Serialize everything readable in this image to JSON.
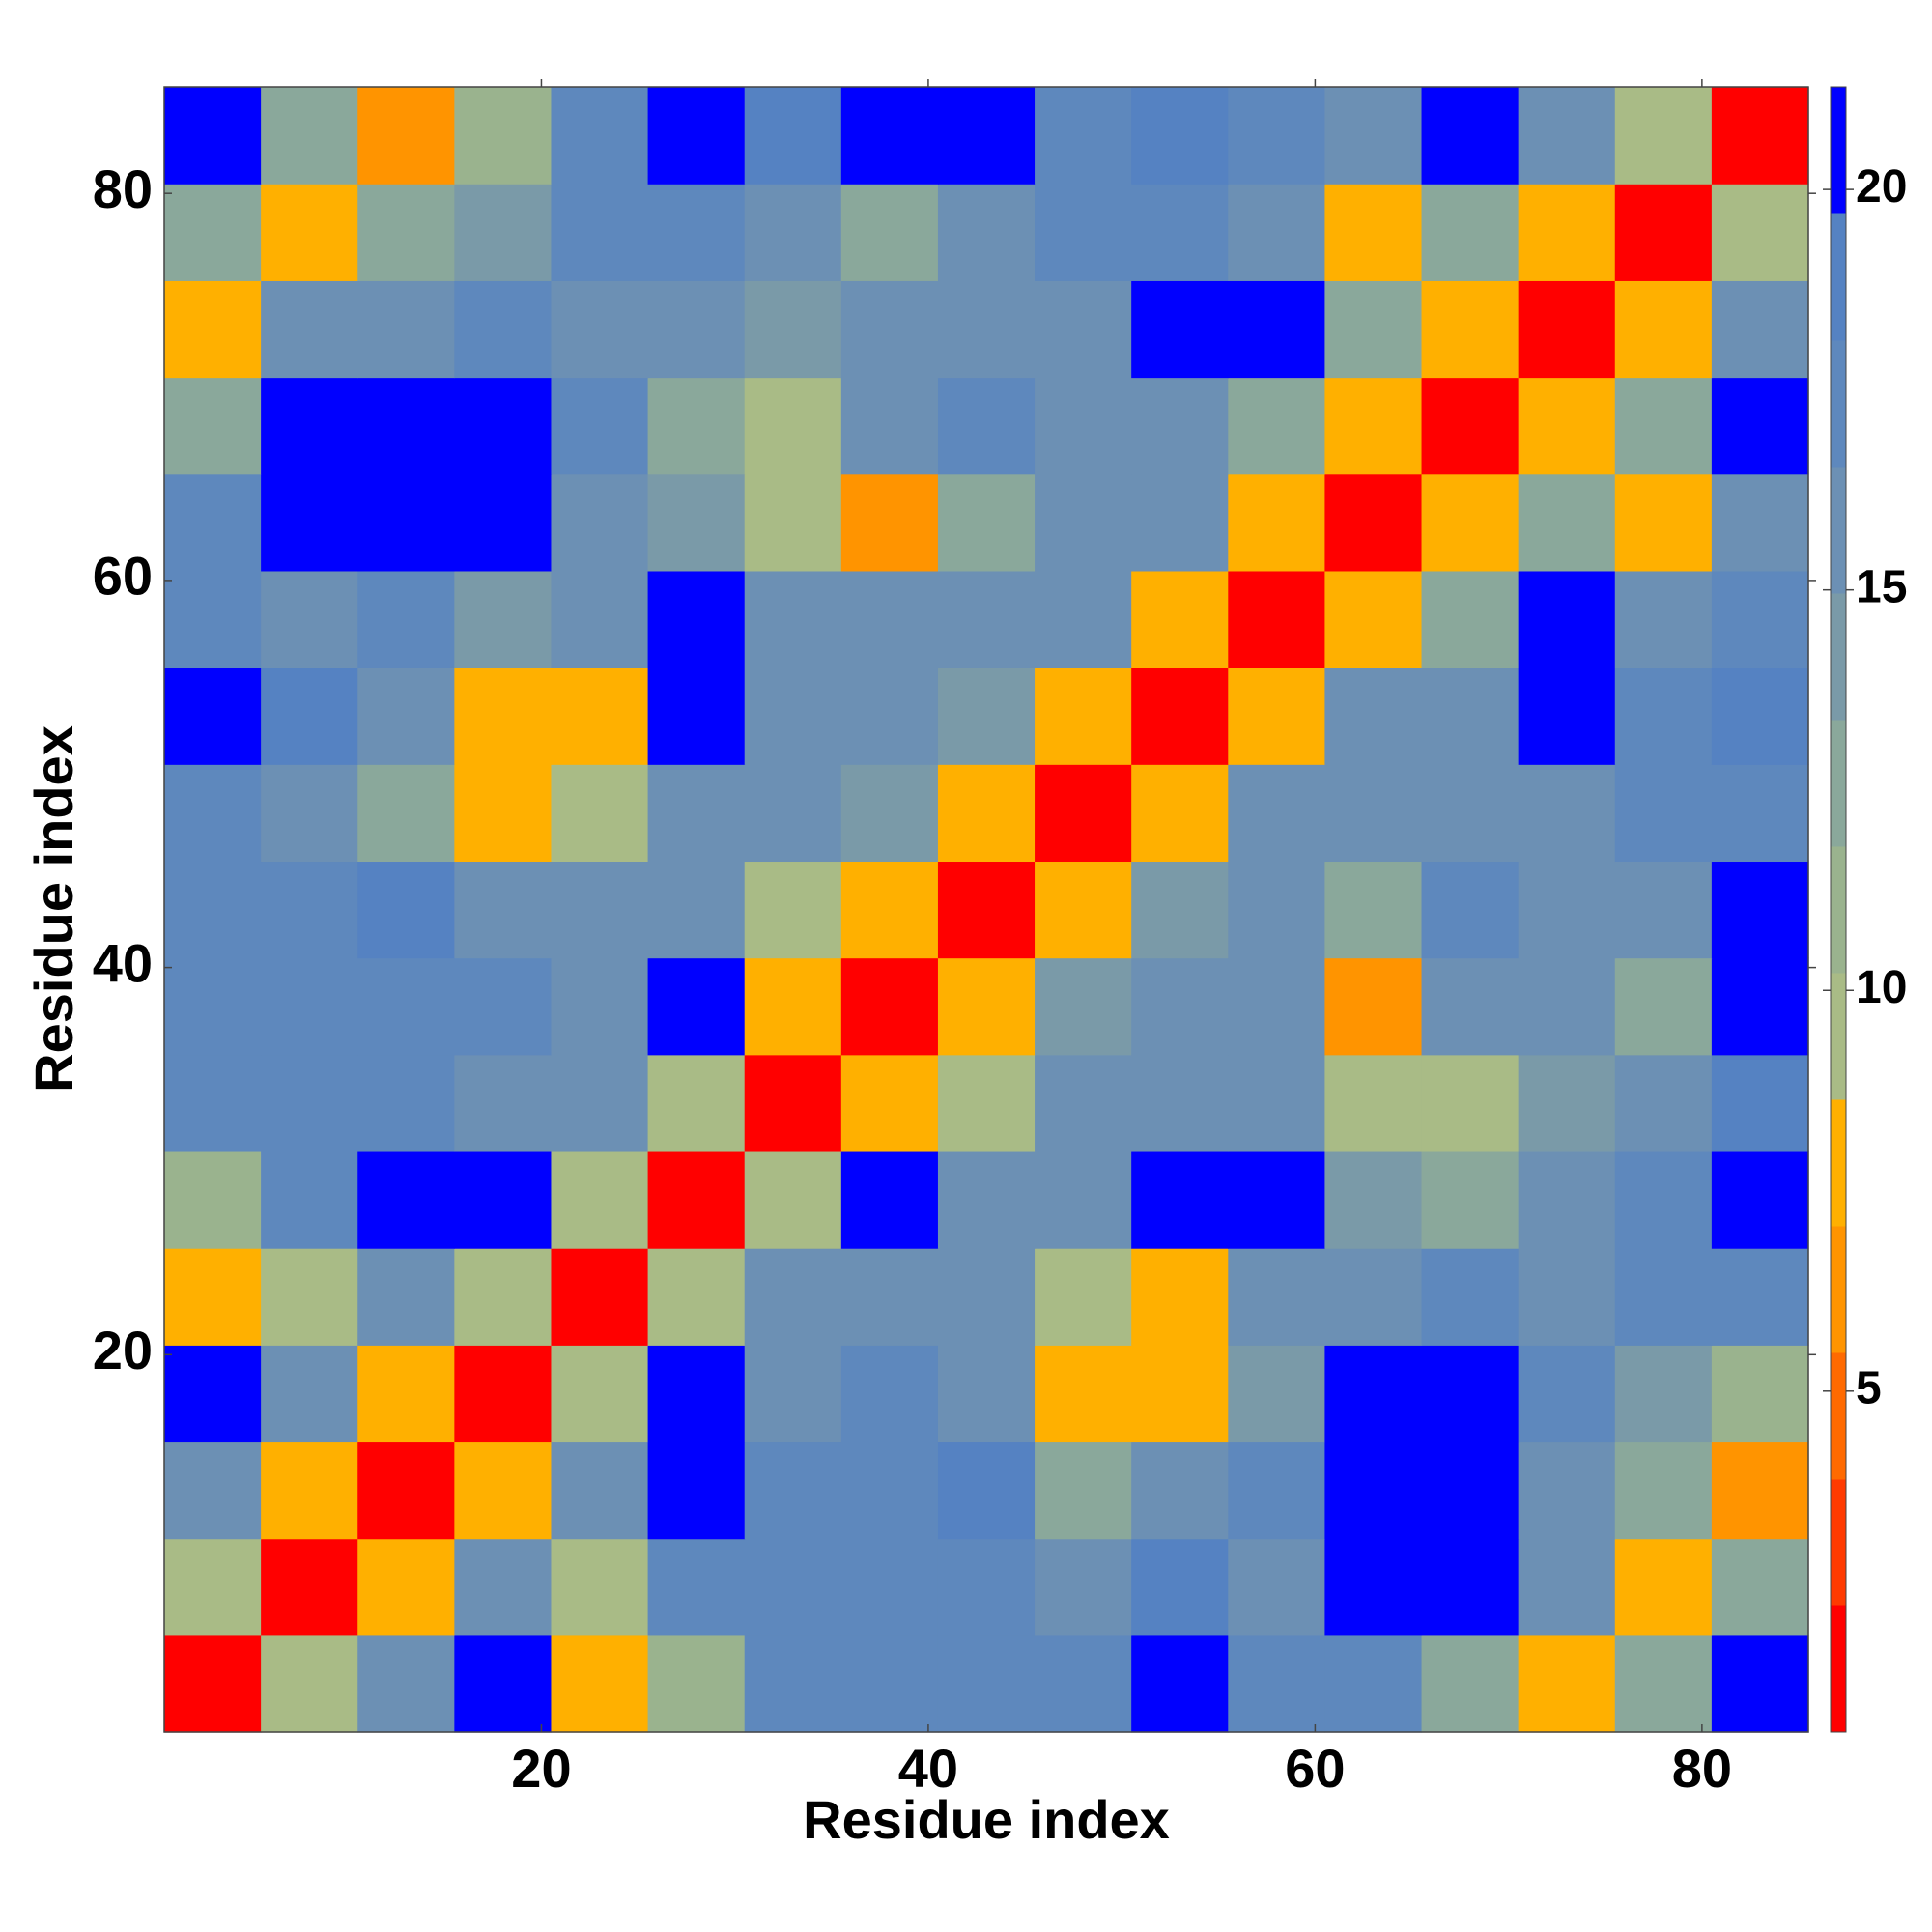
{
  "chart_data": {
    "type": "heatmap",
    "x_label": "Residue index",
    "y_label": "Residue index",
    "xbins": [
      0.5,
      5.5,
      10.5,
      15.5,
      20.5,
      25.5,
      30.5,
      35.5,
      40.5,
      45.5,
      50.5,
      55.5,
      60.5,
      65.5,
      70.5,
      75.5,
      80.5,
      85.5
    ],
    "ybins": [
      0.5,
      5.5,
      10.5,
      15.5,
      20.5,
      25.5,
      30.5,
      35.5,
      40.5,
      45.5,
      50.5,
      55.5,
      60.5,
      65.5,
      70.5,
      75.5,
      80.5,
      85.5
    ],
    "xlim": [
      0.5,
      85.5
    ],
    "ylim": [
      0.5,
      85.5
    ],
    "xticks": [
      20,
      40,
      60,
      80
    ],
    "yticks": [
      20,
      40,
      60,
      80
    ],
    "zlim": [
      0.74,
      21.28
    ],
    "zticks": [
      5,
      10,
      15,
      20
    ],
    "colormap": [
      "#ff0000",
      "#ff3a00",
      "#ff6a00",
      "#ff9400",
      "#ffb000",
      "#a9bb86",
      "#9ab38e",
      "#8aa89b",
      "#7a9aa8",
      "#6c90b4",
      "#5e88bd",
      "#5582c2",
      "#0000ff"
    ],
    "z": [
      [
        2,
        9,
        16,
        21,
        8,
        11,
        17,
        18,
        18,
        17,
        21,
        18,
        17,
        13,
        8,
        12,
        21
      ],
      [
        9,
        2,
        8,
        15,
        10,
        17,
        18,
        17,
        18,
        16,
        19,
        16,
        21,
        21,
        15,
        8,
        13
      ],
      [
        16,
        8,
        2,
        8,
        16,
        21,
        17,
        17,
        19,
        12,
        16,
        18,
        21,
        21,
        16,
        12,
        7
      ],
      [
        21,
        15,
        8,
        2,
        10,
        21,
        16,
        17,
        16,
        8,
        8,
        14,
        21,
        21,
        17,
        14,
        11
      ],
      [
        8,
        10,
        16,
        10,
        2,
        9,
        15,
        15,
        16,
        10,
        8,
        15,
        15,
        17,
        16,
        17,
        18
      ],
      [
        11,
        17,
        21,
        21,
        9,
        2,
        9,
        20,
        15,
        16,
        20,
        20,
        14,
        12,
        16,
        17,
        21
      ],
      [
        17,
        18,
        17,
        16,
        15,
        9,
        2,
        8,
        9,
        16,
        16,
        16,
        9,
        10,
        14,
        15,
        19
      ],
      [
        18,
        17,
        17,
        17,
        15,
        20,
        8,
        2,
        8,
        14,
        15,
        16,
        7,
        16,
        15,
        12,
        21
      ],
      [
        18,
        18,
        19,
        16,
        16,
        15,
        9,
        8,
        2,
        8,
        14,
        15,
        12,
        17,
        15,
        16,
        21
      ],
      [
        17,
        16,
        12,
        8,
        10,
        16,
        16,
        14,
        8,
        2,
        8,
        15,
        15,
        15,
        16,
        17,
        18
      ],
      [
        21,
        19,
        16,
        8,
        8,
        20,
        16,
        15,
        14,
        8,
        2,
        8,
        16,
        16,
        20,
        17,
        19
      ],
      [
        18,
        16,
        18,
        14,
        15,
        20,
        16,
        16,
        15,
        15,
        8,
        2,
        8,
        13,
        20,
        16,
        17
      ],
      [
        17,
        21,
        21,
        21,
        15,
        14,
        9,
        7,
        12,
        15,
        16,
        8,
        2,
        8,
        12,
        8,
        16
      ],
      [
        13,
        21,
        21,
        21,
        17,
        12,
        10,
        16,
        17,
        15,
        16,
        13,
        8,
        2,
        8,
        12,
        20
      ],
      [
        8,
        15,
        16,
        17,
        16,
        16,
        14,
        15,
        15,
        16,
        20,
        20,
        12,
        8,
        2,
        8,
        15
      ],
      [
        12,
        8,
        12,
        14,
        17,
        17,
        15,
        12,
        16,
        17,
        17,
        16,
        8,
        12,
        8,
        2,
        9
      ],
      [
        21,
        13,
        7,
        11,
        18,
        21,
        19,
        21,
        21,
        18,
        19,
        17,
        16,
        20,
        15,
        9,
        2
      ]
    ]
  }
}
